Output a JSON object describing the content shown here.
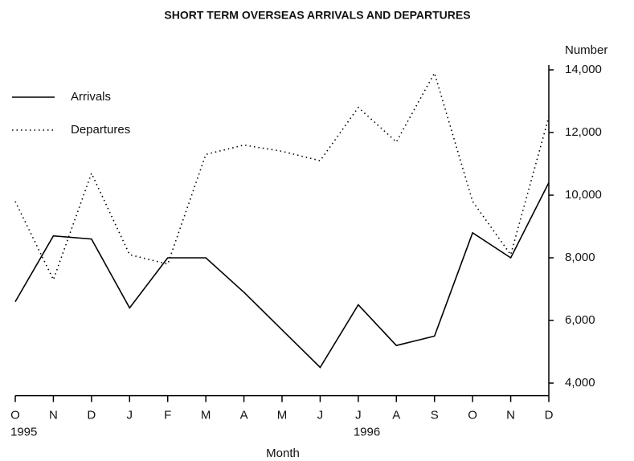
{
  "chart_data": {
    "type": "line",
    "title": "SHORT TERM OVERSEAS ARRIVALS AND DEPARTURES",
    "y_label": "Number",
    "x_label": "Month",
    "categories": [
      "O",
      "N",
      "D",
      "J",
      "F",
      "M",
      "A",
      "M",
      "J",
      "J",
      "A",
      "S",
      "O",
      "N",
      "D"
    ],
    "year_labels": [
      "1995",
      null,
      null,
      null,
      null,
      null,
      null,
      null,
      null,
      "1996",
      null,
      null,
      null,
      null,
      null
    ],
    "series": [
      {
        "name": "Arrivals",
        "color": "#000000",
        "dash": "solid",
        "values": [
          6600,
          8700,
          8600,
          6400,
          8000,
          8000,
          6900,
          5700,
          4500,
          6500,
          5200,
          5500,
          8800,
          8000,
          10400
        ]
      },
      {
        "name": "Departures",
        "color": "#000000",
        "dash": "dotted",
        "values": [
          9800,
          7300,
          10700,
          8100,
          7800,
          11300,
          11600,
          11400,
          11100,
          12800,
          11700,
          13900,
          9800,
          8100,
          12500
        ]
      }
    ],
    "ylim": [
      3600,
      14000
    ],
    "yticks": [
      {
        "value": 4000,
        "label": "4,000"
      },
      {
        "value": 6000,
        "label": "6,000"
      },
      {
        "value": 8000,
        "label": "8,000"
      },
      {
        "value": 10000,
        "label": "10,000"
      },
      {
        "value": 12000,
        "label": "12,000"
      },
      {
        "value": 14000,
        "label": "14,000"
      }
    ],
    "y_axis_side": "right",
    "legend": "top-left",
    "grid": false
  }
}
